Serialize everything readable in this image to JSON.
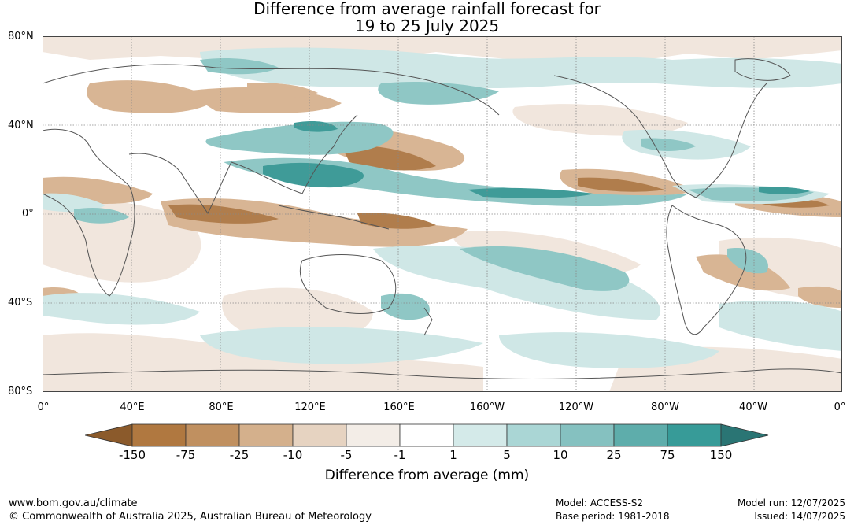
{
  "title": {
    "line1": "Difference from average rainfall forecast for",
    "line2": "19 to 25 July 2025"
  },
  "lat_labels": [
    "80°N",
    "40°N",
    "0°",
    "40°S",
    "80°S"
  ],
  "lon_labels": [
    "0°",
    "40°E",
    "80°E",
    "120°E",
    "160°E",
    "160°W",
    "120°W",
    "80°W",
    "40°W",
    "0°"
  ],
  "colorbar": {
    "title": "Difference from average (mm)",
    "tick_labels": [
      "-150",
      "-75",
      "-25",
      "-10",
      "-5",
      "-1",
      "1",
      "5",
      "10",
      "25",
      "75",
      "150"
    ],
    "colors": [
      "#8b5a2b",
      "#b07840",
      "#c09060",
      "#d4b08c",
      "#e6d3c1",
      "#f3ede7",
      "#ffffff",
      "#d4eae9",
      "#aad6d5",
      "#85c1c0",
      "#5eadab",
      "#379b98",
      "#2a7574"
    ]
  },
  "footer": {
    "url": "www.bom.gov.au/climate",
    "copyright": "© Commonwealth of Australia 2025, Australian Bureau of Meteorology",
    "model": "Model: ACCESS-S2",
    "base_period": "Base period: 1981-2018",
    "model_run": "Model run: 12/07/2025",
    "issued": "Issued: 14/07/2025"
  }
}
